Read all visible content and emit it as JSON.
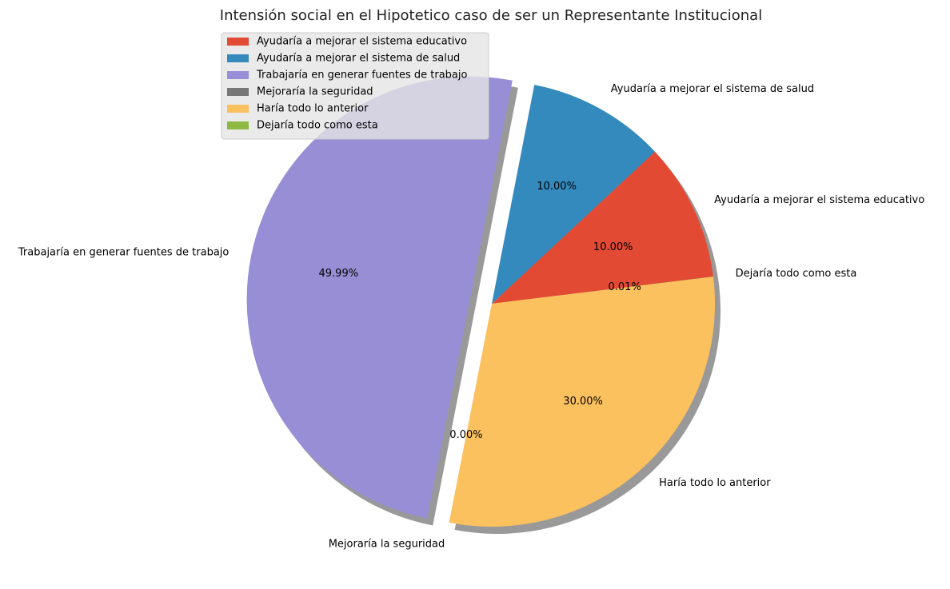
{
  "chart_data": {
    "type": "pie",
    "title": "Intensión social en el Hipotetico caso de ser un Representante Institucional",
    "slices": [
      {
        "label": "Ayudaría a mejorar el sistema educativo",
        "value": 10.0,
        "pct_label": "10.00%",
        "color": "#E24A33",
        "explode": false
      },
      {
        "label": "Ayudaría a mejorar el sistema de salud",
        "value": 10.0,
        "pct_label": "10.00%",
        "color": "#348ABD",
        "explode": false
      },
      {
        "label": "Trabajaría en generar fuentes de trabajo",
        "value": 49.99,
        "pct_label": "49.99%",
        "color": "#988ED5",
        "explode": true
      },
      {
        "label": "Mejoraría la seguridad",
        "value": 0.0,
        "pct_label": "0.00%",
        "color": "#777777",
        "explode": false
      },
      {
        "label": "Haría todo lo anterior",
        "value": 30.0,
        "pct_label": "30.00%",
        "color": "#FBC15E",
        "explode": false
      },
      {
        "label": "Dejaría todo como esta",
        "value": 0.01,
        "pct_label": "0.01%",
        "color": "#8EBA42",
        "explode": false
      }
    ],
    "legend": {
      "location": "upper-left",
      "entries": [
        "Ayudaría a mejorar el sistema educativo",
        "Ayudaría a mejorar el sistema de salud",
        "Trabajaría en generar fuentes de trabajo",
        "Mejoraría la seguridad",
        "Haría todo lo anterior",
        "Dejaría todo como esta"
      ]
    },
    "shadow": true,
    "start_angle_deg": 7
  }
}
